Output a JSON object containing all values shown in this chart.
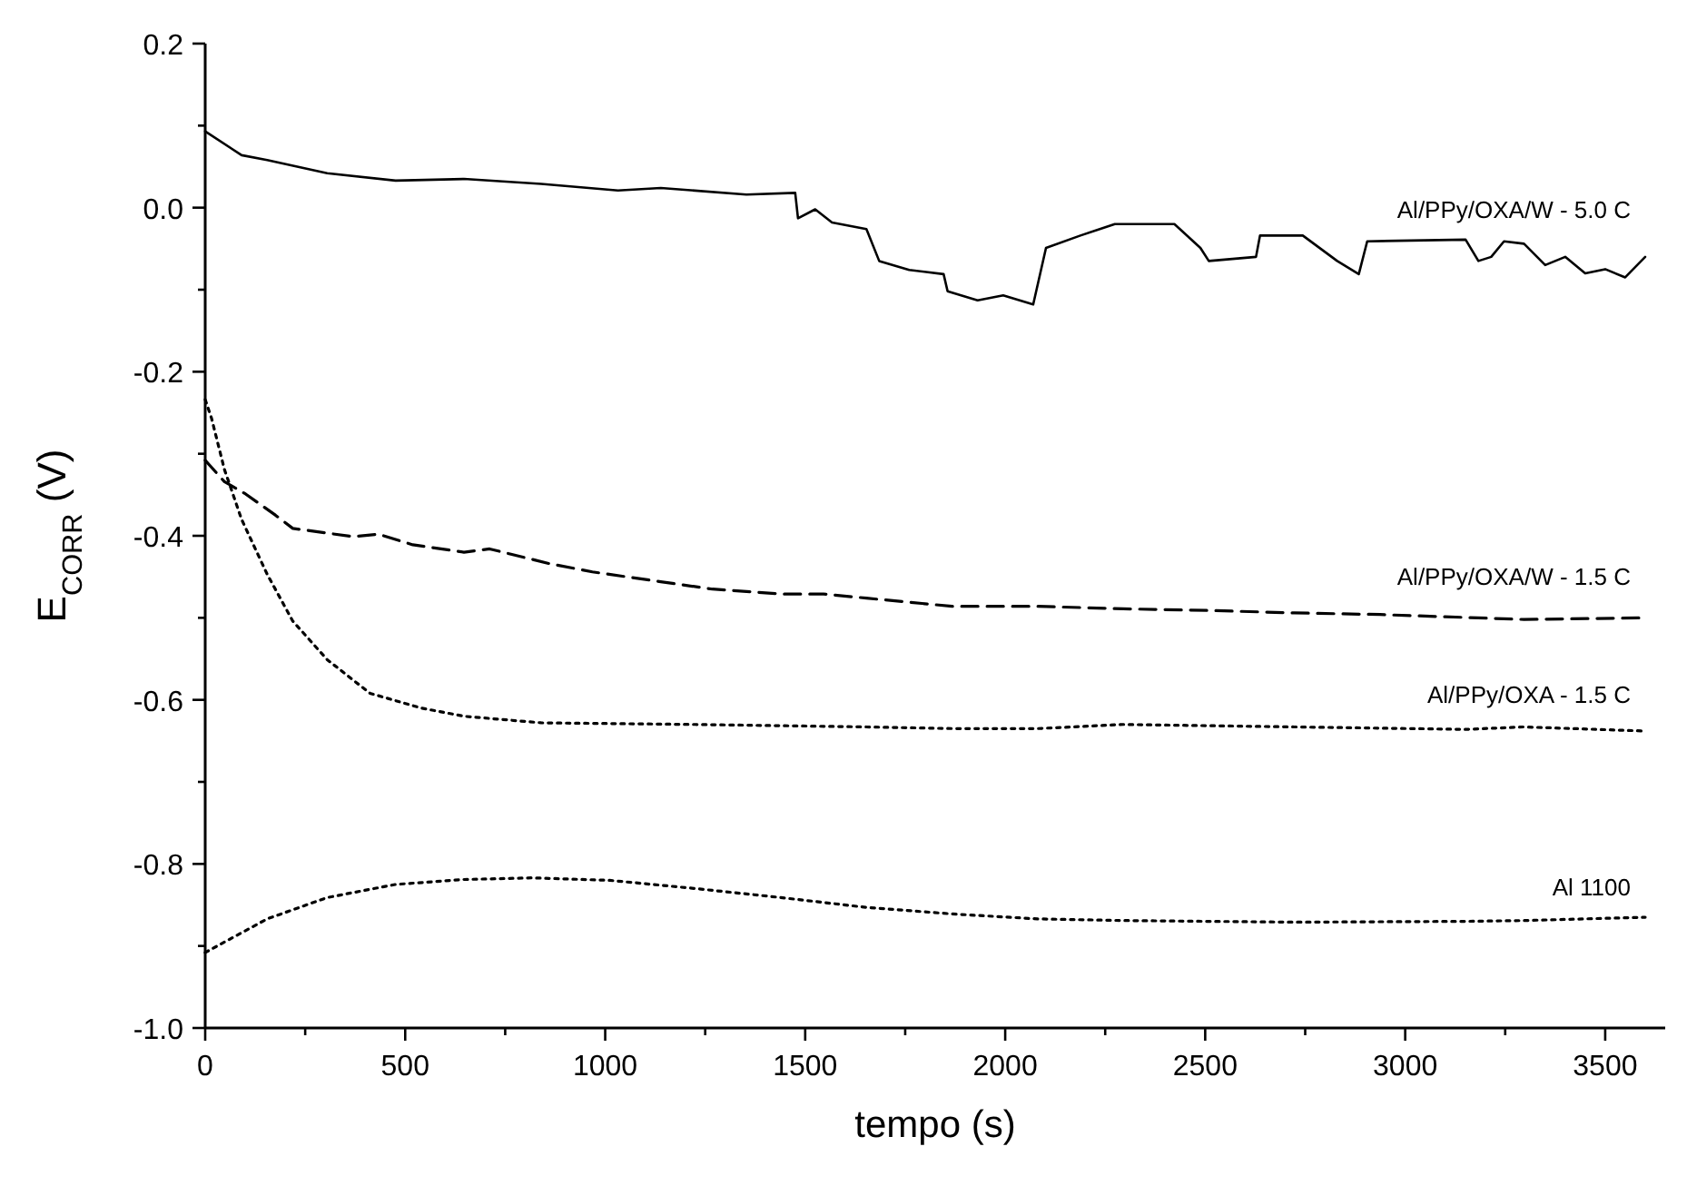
{
  "chart_data": {
    "type": "line",
    "xlabel": "tempo (s)",
    "ylabel": "E$_{CORR}$ (V)",
    "xlim": [
      0,
      3650
    ],
    "ylim": [
      -1.0,
      0.2
    ],
    "xticks": [
      0,
      {
        "value": 250,
        "label": null
      },
      500,
      {
        "value": 750,
        "label": null
      },
      1000,
      {
        "value": 1250,
        "label": null
      },
      1500,
      {
        "value": 1750,
        "label": null
      },
      2000,
      {
        "value": 2250,
        "label": null
      },
      2500,
      {
        "value": 2750,
        "label": null
      },
      3000,
      {
        "value": 3250,
        "label": null
      },
      3500
    ],
    "yticks": [
      {
        "value": 0.2,
        "label": "0.2"
      },
      {
        "value": 0.1,
        "label": null
      },
      {
        "value": 0.0,
        "label": "0.0"
      },
      {
        "value": -0.1,
        "label": null
      },
      {
        "value": -0.2,
        "label": "-0.2"
      },
      {
        "value": -0.3,
        "label": null
      },
      {
        "value": -0.4,
        "label": "-0.4"
      },
      {
        "value": -0.5,
        "label": null
      },
      {
        "value": -0.6,
        "label": "-0.6"
      },
      {
        "value": -0.7,
        "label": null
      },
      {
        "value": -0.8,
        "label": "-0.8"
      },
      {
        "value": -0.9,
        "label": null
      },
      {
        "value": -1.0,
        "label": "-1.0"
      }
    ],
    "grid": false,
    "marker": "none",
    "series": [
      {
        "name": "Al/PPy/OXA/W - 5.0 C",
        "color": "#000000",
        "line_style": "solid",
        "x": [
          0,
          91,
          155,
          305,
          476,
          647,
          840,
          1032,
          1139,
          1353,
          1475,
          1482,
          1525,
          1567,
          1653,
          1685,
          1760,
          1846,
          1856,
          1931,
          1995,
          2070,
          2102,
          2188,
          2274,
          2423,
          2488,
          2509,
          2627,
          2637,
          2744,
          2830,
          2884,
          2905,
          3151,
          3183,
          3215,
          3247,
          3297,
          3350,
          3400,
          3450,
          3500,
          3550,
          3600
        ],
        "values": [
          0.093,
          0.064,
          0.058,
          0.042,
          0.033,
          0.035,
          0.029,
          0.021,
          0.024,
          0.016,
          0.018,
          -0.013,
          -0.002,
          -0.018,
          -0.026,
          -0.065,
          -0.076,
          -0.081,
          -0.102,
          -0.113,
          -0.107,
          -0.118,
          -0.049,
          -0.034,
          -0.02,
          -0.02,
          -0.049,
          -0.065,
          -0.06,
          -0.034,
          -0.034,
          -0.065,
          -0.081,
          -0.041,
          -0.039,
          -0.065,
          -0.06,
          -0.041,
          -0.044,
          -0.07,
          -0.06,
          -0.08,
          -0.075,
          -0.085,
          -0.06
        ]
      },
      {
        "name": "Al/PPy/OXA/W - 1.5 C",
        "color": "#000000",
        "line_style": "dashed",
        "x": [
          0,
          48,
          101,
          176,
          219,
          369,
          433,
          519,
          647,
          711,
          861,
          968,
          1139,
          1268,
          1439,
          1546,
          1653,
          1867,
          2081,
          2295,
          2509,
          2723,
          2937,
          3297,
          3600
        ],
        "values": [
          -0.308,
          -0.334,
          -0.349,
          -0.375,
          -0.391,
          -0.401,
          -0.398,
          -0.411,
          -0.42,
          -0.416,
          -0.434,
          -0.444,
          -0.456,
          -0.465,
          -0.471,
          -0.471,
          -0.476,
          -0.486,
          -0.486,
          -0.489,
          -0.491,
          -0.494,
          -0.496,
          -0.502,
          -0.5
        ]
      },
      {
        "name": "Al/PPy/OXA - 1.5 C",
        "color": "#000000",
        "line_style": "dotted",
        "x": [
          0,
          16,
          48,
          91,
          155,
          219,
          305,
          412,
          540,
          647,
          840,
          1225,
          1653,
          1867,
          2081,
          2295,
          2723,
          3151,
          3297,
          3600
        ],
        "values": [
          -0.234,
          -0.257,
          -0.319,
          -0.38,
          -0.447,
          -0.504,
          -0.551,
          -0.592,
          -0.61,
          -0.62,
          -0.628,
          -0.63,
          -0.633,
          -0.635,
          -0.635,
          -0.63,
          -0.633,
          -0.636,
          -0.633,
          -0.638
        ]
      },
      {
        "name": "Al 1100",
        "color": "#000000",
        "line_style": "dotted",
        "x": [
          0,
          155,
          305,
          476,
          647,
          818,
          1011,
          1225,
          1439,
          1653,
          1867,
          2081,
          2295,
          2723,
          3151,
          3297,
          3600
        ],
        "values": [
          -0.908,
          -0.867,
          -0.841,
          -0.825,
          -0.819,
          -0.817,
          -0.82,
          -0.83,
          -0.841,
          -0.853,
          -0.861,
          -0.867,
          -0.869,
          -0.871,
          -0.87,
          -0.869,
          -0.865
        ]
      }
    ]
  }
}
